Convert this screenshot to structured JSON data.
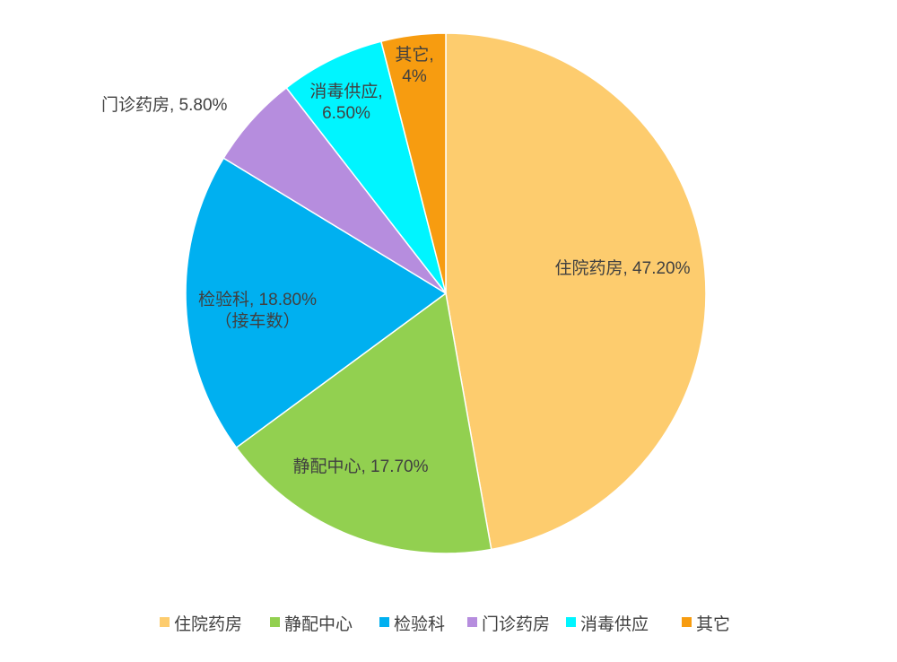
{
  "chart_data": {
    "type": "pie",
    "slices": [
      {
        "name": "住院药房",
        "value": 47.2,
        "color": "#FDCC6E",
        "label_lines": [
          "住院药房, 47.20%"
        ]
      },
      {
        "name": "静配中心",
        "value": 17.7,
        "color": "#92D050",
        "label_lines": [
          "静配中心, 17.70%"
        ]
      },
      {
        "name": "检验科",
        "value": 18.8,
        "color": "#00B0F0",
        "label_lines": [
          "检验科, 18.80%",
          "（接车数）"
        ]
      },
      {
        "name": "门诊药房",
        "value": 5.8,
        "color": "#B68DDE",
        "label_lines": [
          "门诊药房, 5.80%"
        ]
      },
      {
        "name": "消毒供应",
        "value": 6.5,
        "color": "#00F5FF",
        "label_lines": [
          "消毒供应,",
          "6.50%"
        ]
      },
      {
        "name": "其它",
        "value": 4,
        "color": "#F79C10",
        "label_lines": [
          "其它,",
          "4%"
        ]
      }
    ],
    "legend_position": "bottom"
  }
}
